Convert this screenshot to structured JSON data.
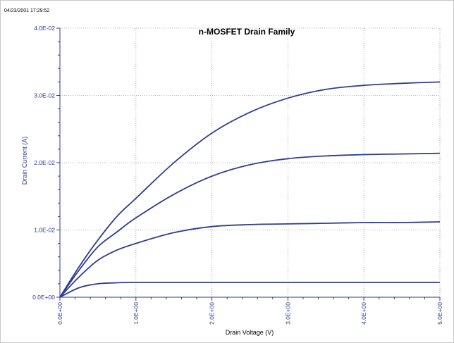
{
  "timestamp": "04/23/2001 17:29:52",
  "colors": {
    "curve": "#2e3d8f",
    "axis": "#2b3990",
    "grid": "#9a9a9a",
    "background": "#ffffff"
  },
  "chart_data": {
    "type": "line",
    "title": "n-MOSFET Drain Family",
    "xlabel": "Drain Voltage (V)",
    "ylabel": "Drain Current (A)",
    "xlim": [
      0,
      5
    ],
    "ylim": [
      0,
      0.04
    ],
    "grid": true,
    "x_ticks": [
      "0.0E+00",
      "1.0E+00",
      "2.0E+00",
      "3.0E+00",
      "4.0E+00",
      "5.0E+00"
    ],
    "y_ticks": [
      "0.0E+00",
      "1.0E-02",
      "2.0E-02",
      "3.0E-02",
      "4.0E-02"
    ],
    "x": [
      0,
      0.25,
      0.5,
      0.75,
      1.0,
      1.5,
      2.0,
      2.5,
      3.0,
      3.5,
      4.0,
      4.5,
      5.0
    ],
    "series": [
      {
        "values": [
          0,
          0.0014,
          0.002,
          0.00215,
          0.0022,
          0.0022,
          0.0022,
          0.0022,
          0.0022,
          0.0022,
          0.0022,
          0.0022,
          0.0022
        ]
      },
      {
        "values": [
          0,
          0.003,
          0.0055,
          0.007,
          0.008,
          0.0096,
          0.0105,
          0.0108,
          0.0109,
          0.011,
          0.0111,
          0.0111,
          0.0112
        ]
      },
      {
        "values": [
          0,
          0.004,
          0.0075,
          0.0097,
          0.0118,
          0.0153,
          0.018,
          0.0197,
          0.0206,
          0.021,
          0.0212,
          0.0213,
          0.0214
        ]
      },
      {
        "values": [
          0,
          0.0045,
          0.0085,
          0.012,
          0.0147,
          0.02,
          0.0244,
          0.0275,
          0.0296,
          0.0309,
          0.0315,
          0.0318,
          0.032
        ]
      }
    ]
  }
}
